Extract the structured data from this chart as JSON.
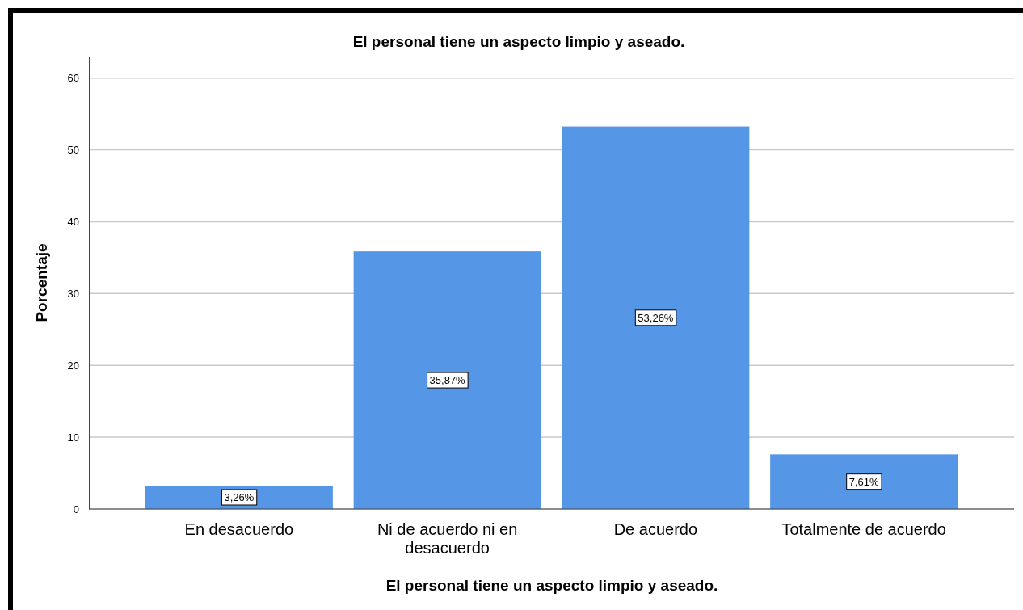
{
  "chart_data": {
    "type": "bar",
    "title": "El personal tiene un aspecto limpio y aseado.",
    "xlabel": "El personal tiene un aspecto limpio y aseado.",
    "ylabel": "Porcentaje",
    "categories": [
      "En desacuerdo",
      "Ni de acuerdo ni en desacuerdo",
      "De acuerdo",
      "Totalmente de acuerdo"
    ],
    "values": [
      3.26,
      35.87,
      53.26,
      7.61
    ],
    "value_labels": [
      "3,26%",
      "35,87%",
      "53,26%",
      "7,61%"
    ],
    "color": "#5596e6",
    "ylim": [
      0,
      63
    ],
    "yticks": [
      0,
      10,
      20,
      30,
      40,
      50,
      60
    ],
    "grid": "y"
  }
}
